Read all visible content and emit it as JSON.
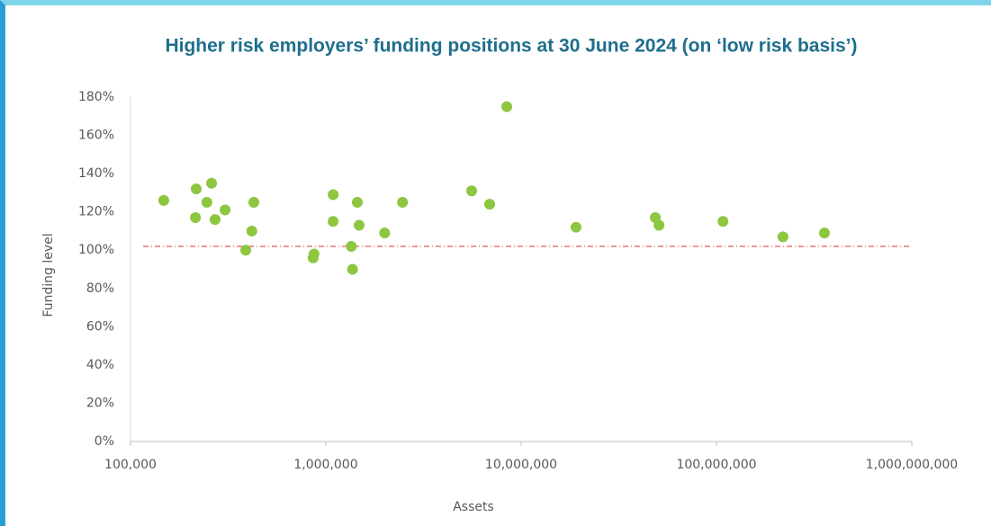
{
  "chart_data": {
    "type": "scatter",
    "title": "Higher risk employers’ funding positions at 30 June 2024 (on ‘low risk basis’)",
    "x_label": "Assets",
    "y_label": "Funding level",
    "xscale": "log",
    "color": "#8dc63f",
    "reference_line": 102,
    "reference_color": "#e03030",
    "xlim": [
      100000,
      1000000000
    ],
    "ylim": [
      0,
      180
    ],
    "xticks": [
      {
        "value": 100000,
        "label": "100,000"
      },
      {
        "value": 1000000,
        "label": "1,000,000"
      },
      {
        "value": 10000000,
        "label": "10,000,000"
      },
      {
        "value": 100000000,
        "label": "100,000,000"
      },
      {
        "value": 1000000000,
        "label": "1,000,000,000"
      }
    ],
    "yticks": [
      {
        "value": 0,
        "label": "0%"
      },
      {
        "value": 20,
        "label": "20%"
      },
      {
        "value": 40,
        "label": "40%"
      },
      {
        "value": 60,
        "label": "60%"
      },
      {
        "value": 80,
        "label": "80%"
      },
      {
        "value": 100,
        "label": "100%"
      },
      {
        "value": 120,
        "label": "120%"
      },
      {
        "value": 140,
        "label": "140%"
      },
      {
        "value": 160,
        "label": "160%"
      },
      {
        "value": 180,
        "label": "180%"
      }
    ],
    "x": [
      148000,
      217000,
      215000,
      246000,
      260000,
      271000,
      305000,
      428000,
      418000,
      389000,
      861000,
      870000,
      1090000,
      1090000,
      1350000,
      1370000,
      1450000,
      1480000,
      2000000,
      2470000,
      5580000,
      6900000,
      8440000,
      19100000,
      48600000,
      50800000,
      108000000,
      219000000,
      357000000
    ],
    "values": [
      126,
      132,
      117,
      125,
      135,
      116,
      121,
      125,
      110,
      100,
      96,
      98,
      129,
      115,
      102,
      90,
      125,
      113,
      109,
      125,
      131,
      124,
      175,
      112,
      117,
      113,
      115,
      107,
      109
    ]
  }
}
